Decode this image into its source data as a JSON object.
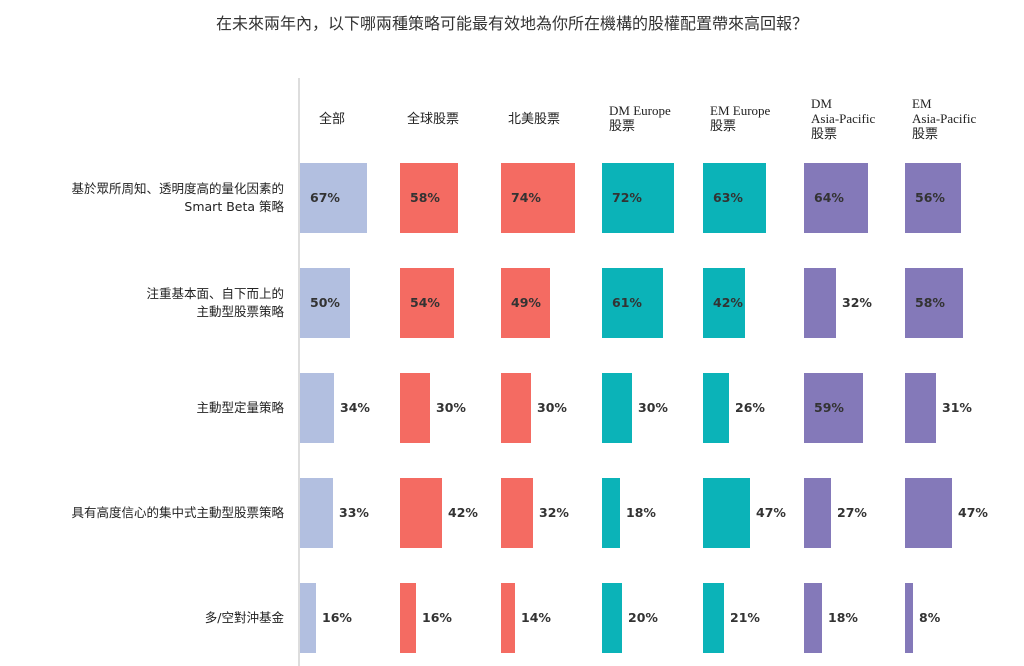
{
  "chart_data": {
    "type": "bar",
    "title": "在未來兩年內，以下哪兩種策略可能最有效地為你所在機構的股權配置帶來高回報？",
    "columns": [
      {
        "label": [
          "全部"
        ],
        "color": "#b2bfe0"
      },
      {
        "label": [
          "全球股票"
        ],
        "color": "#f46b62"
      },
      {
        "label": [
          "北美股票"
        ],
        "color": "#f46b62"
      },
      {
        "label": [
          "DM Europe",
          "股票"
        ],
        "color": "#0bb3b8"
      },
      {
        "label": [
          "EM Europe",
          "股票"
        ],
        "color": "#0bb3b8"
      },
      {
        "label": [
          "DM",
          "Asia-Pacific",
          "股票"
        ],
        "color": "#8479b9"
      },
      {
        "label": [
          "EM",
          "Asia-Pacific",
          "股票"
        ],
        "color": "#8479b9"
      }
    ],
    "rows": [
      {
        "label": [
          "基於眾所周知、透明度高的量化因素的",
          "Smart Beta 策略"
        ],
        "values": [
          67,
          58,
          74,
          72,
          63,
          64,
          56
        ],
        "label_inside": [
          true,
          true,
          true,
          true,
          true,
          true,
          true
        ]
      },
      {
        "label": [
          "注重基本面、自下而上的",
          "主動型股票策略"
        ],
        "values": [
          50,
          54,
          49,
          61,
          42,
          32,
          58
        ],
        "label_inside": [
          true,
          true,
          true,
          true,
          true,
          false,
          true
        ]
      },
      {
        "label": [
          "主動型定量策略"
        ],
        "values": [
          34,
          30,
          30,
          30,
          26,
          59,
          31
        ],
        "label_inside": [
          false,
          false,
          false,
          false,
          false,
          true,
          false
        ]
      },
      {
        "label": [
          "具有高度信心的集中式主動型股票策略"
        ],
        "values": [
          33,
          42,
          32,
          18,
          47,
          27,
          47
        ],
        "label_inside": [
          false,
          false,
          false,
          false,
          false,
          false,
          false
        ]
      },
      {
        "label": [
          "多/空對沖基金"
        ],
        "values": [
          16,
          16,
          14,
          20,
          21,
          18,
          8
        ],
        "label_inside": [
          false,
          false,
          false,
          false,
          false,
          false,
          false
        ]
      }
    ],
    "unit": "%",
    "xlim": [
      0,
      100
    ]
  }
}
